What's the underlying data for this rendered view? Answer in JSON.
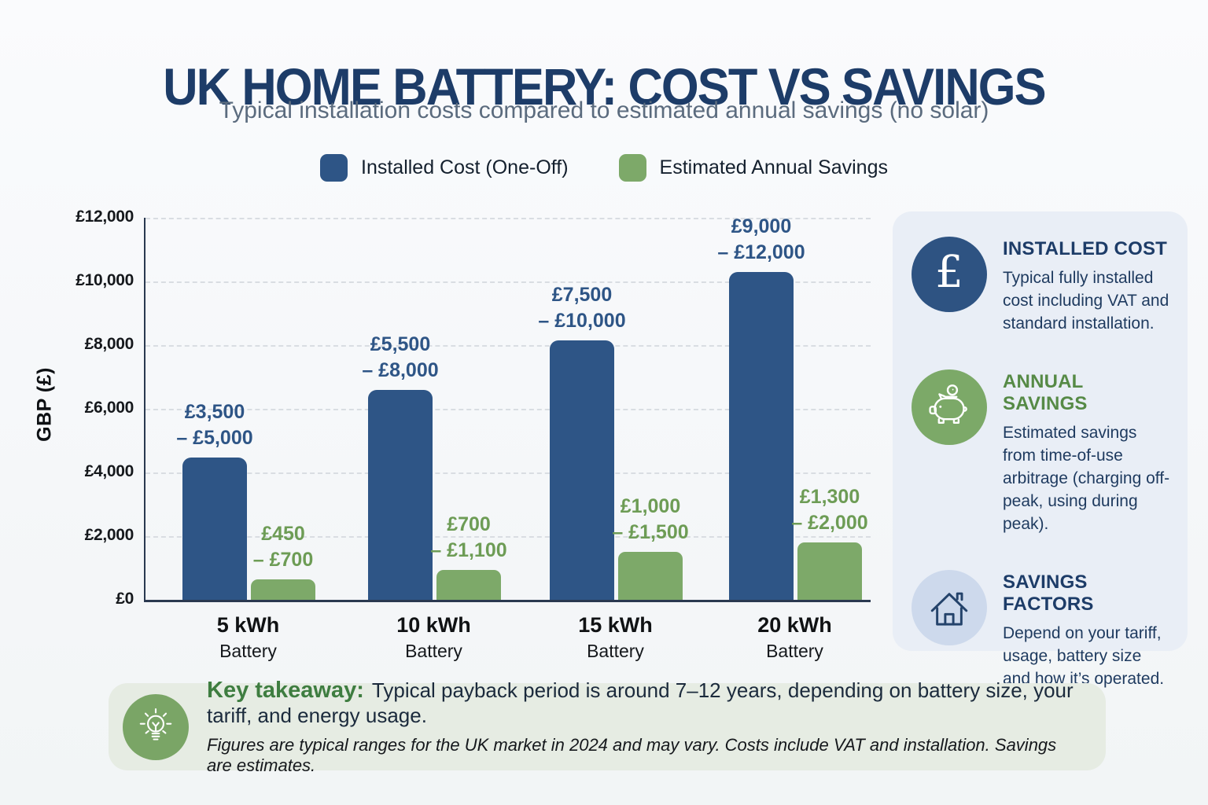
{
  "chart_data": {
    "type": "bar",
    "title": "UK HOME BATTERY: COST VS SAVINGS",
    "subtitle": "Typical installation costs compared to estimated annual savings (no solar)",
    "xlabel": "",
    "ylabel": "GBP (£)",
    "ylim": [
      0,
      12000
    ],
    "yticks": [
      {
        "value": 12000,
        "label": "£12,000"
      },
      {
        "value": 10000,
        "label": "£10,000"
      },
      {
        "value": 8000,
        "label": "£8,000"
      },
      {
        "value": 6000,
        "label": "£6,000"
      },
      {
        "value": 4000,
        "label": "£4,000"
      },
      {
        "value": 2000,
        "label": "£2,000"
      },
      {
        "value": 0,
        "label": "£0"
      }
    ],
    "grid": "horizontal-dashed",
    "legend_position": "top",
    "categories": [
      "5 kWh",
      "10 kWh",
      "15 kWh",
      "20 kWh"
    ],
    "category_subtitle": "Battery",
    "series": [
      {
        "name": "Installed Cost (One-Off)",
        "color": "#2e5586",
        "range_low": [
          3500,
          5500,
          7500,
          9000
        ],
        "range_high": [
          5000,
          8000,
          10000,
          12000
        ],
        "range_labels": [
          [
            "£3,500",
            "– £5,000"
          ],
          [
            "£5,500",
            "– £8,000"
          ],
          [
            "£7,500",
            "– £10,000"
          ],
          [
            "£9,000",
            "– £12,000"
          ]
        ],
        "plotted_values": [
          4480,
          6600,
          8150,
          10300
        ]
      },
      {
        "name": "Estimated Annual Savings",
        "color": "#7da969",
        "range_low": [
          450,
          700,
          1000,
          1300
        ],
        "range_high": [
          700,
          1100,
          1500,
          2000
        ],
        "range_labels": [
          [
            "£450",
            "– £700"
          ],
          [
            "£700",
            "– £1,100"
          ],
          [
            "£1,000",
            "– £1,500"
          ],
          [
            "£1,300",
            "– £2,000"
          ]
        ],
        "plotted_values": [
          650,
          950,
          1500,
          1800
        ]
      }
    ]
  },
  "sidebar": {
    "items": [
      {
        "icon": "pound-sterling-icon",
        "title": "INSTALLED COST",
        "body": "Typical fully installed cost including VAT and standard installation.",
        "title_color": "#1d3c68"
      },
      {
        "icon": "piggy-bank-icon",
        "title": "ANNUAL SAVINGS",
        "body": "Estimated savings from time-of-use arbitrage (charging off-peak, using during peak).",
        "title_color": "#568a46"
      },
      {
        "icon": "house-icon",
        "title": "SAVINGS FACTORS",
        "body": "Depend on your tariff, usage, battery size and how it’s operated.",
        "title_color": "#1d3c68"
      }
    ]
  },
  "takeaway": {
    "icon": "lightbulb-icon",
    "label": "Key takeaway:",
    "text": "Typical payback period is around 7–12 years, depending on battery size, your tariff, and energy usage.",
    "footnote": "Figures are typical ranges for the UK market in 2024 and may vary. Costs include VAT and installation. Savings are estimates."
  }
}
